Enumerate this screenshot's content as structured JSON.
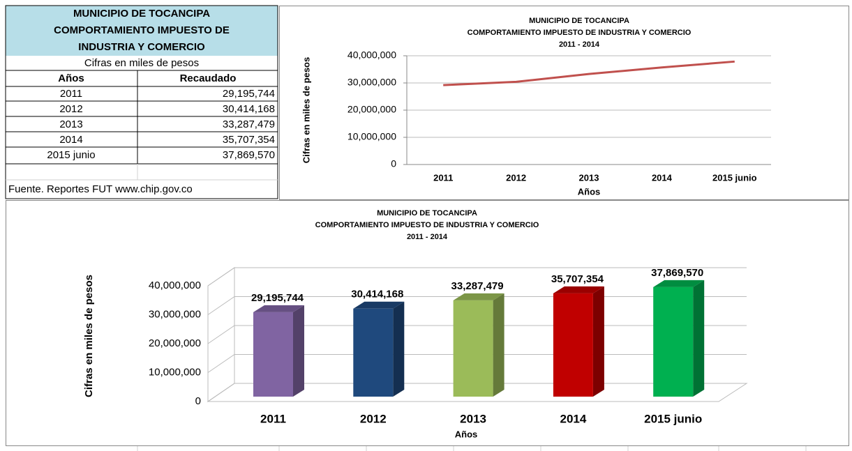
{
  "table": {
    "title_lines": [
      "MUNICIPIO DE TOCANCIPA",
      "COMPORTAMIENTO IMPUESTO DE",
      "INDUSTRIA Y COMERCIO"
    ],
    "subtitle": "Cifras en miles de pesos",
    "headers": [
      "Años",
      "Recaudado"
    ],
    "rows": [
      [
        "2011",
        "29,195,744"
      ],
      [
        "2012",
        "30,414,168"
      ],
      [
        "2013",
        "33,287,479"
      ],
      [
        "2014",
        "35,707,354"
      ],
      [
        "2015 junio",
        "37,869,570"
      ]
    ],
    "source": "Fuente. Reportes FUT www.chip.gov.co"
  },
  "chart_data": [
    {
      "type": "line",
      "title_lines": [
        "MUNICIPIO DE TOCANCIPA",
        "COMPORTAMIENTO  IMPUESTO DE INDUSTRIA Y COMERCIO",
        "2011 - 2014"
      ],
      "x_label": "Años",
      "y_label": "Cifras en miles de pesos",
      "categories": [
        "2011",
        "2012",
        "2013",
        "2014",
        "2015 junio"
      ],
      "values": [
        29195744,
        30414168,
        33287479,
        35707354,
        37869570
      ],
      "color": "#c0504d",
      "ylim": [
        0,
        40000000
      ],
      "yticks": [
        0,
        {
          "value": 10000000,
          "label": "10,000,000"
        },
        {
          "value": 20000000,
          "label": "20,000,000"
        },
        {
          "value": 30000000,
          "label": "30,000,000"
        },
        {
          "value": 40000000,
          "label": "40,000,000"
        }
      ],
      "grid": true
    },
    {
      "type": "bar3d",
      "title_lines": [
        "MUNICIPIO DE TOCANCIPA",
        "COMPORTAMIENTO  IMPUESTO DE INDUSTRIA Y COMERCIO",
        "2011 - 2014"
      ],
      "x_label": "Años",
      "y_label": "Cifras en miles de pesos",
      "categories": [
        "2011",
        "2012",
        "2013",
        "2014",
        "2015 junio"
      ],
      "values": [
        29195744,
        30414168,
        33287479,
        35707354,
        37869570
      ],
      "value_labels": [
        "29,195,744",
        "30,414,168",
        "33,287,479",
        "35,707,354",
        "37,869,570"
      ],
      "colors": [
        "#8064a2",
        "#1f497d",
        "#9bbb59",
        "#c00000",
        "#00b050"
      ],
      "ylim": [
        0,
        40000000
      ],
      "yticks": [
        0,
        {
          "value": 10000000,
          "label": "10,000,000"
        },
        {
          "value": 20000000,
          "label": "20,000,000"
        },
        {
          "value": 30000000,
          "label": "30,000,000"
        },
        {
          "value": 40000000,
          "label": "40,000,000"
        }
      ],
      "grid": true
    }
  ]
}
